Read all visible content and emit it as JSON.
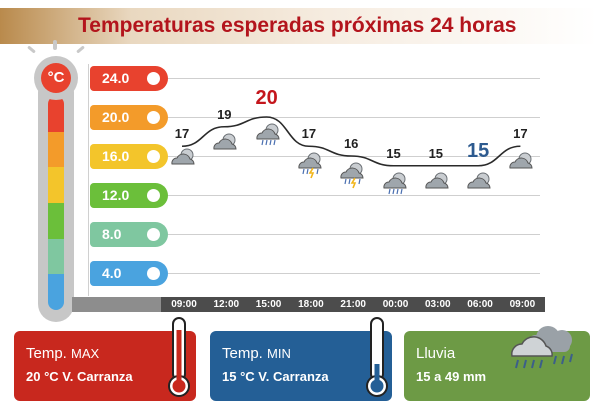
{
  "title": "Temperaturas esperadas próximas 24 horas",
  "unit_symbol": "°C",
  "scale": [
    {
      "label": "24.0",
      "color": "#e8422e"
    },
    {
      "label": "20.0",
      "color": "#f39b2a"
    },
    {
      "label": "16.0",
      "color": "#f3c52b"
    },
    {
      "label": "12.0",
      "color": "#6bbf3a"
    },
    {
      "label": "8.0",
      "color": "#7fc7a0"
    },
    {
      "label": "4.0",
      "color": "#4aa3df"
    }
  ],
  "times": [
    "09:00",
    "12:00",
    "15:00",
    "18:00",
    "21:00",
    "00:00",
    "03:00",
    "06:00",
    "09:00"
  ],
  "chart_data": {
    "type": "line",
    "x": [
      "09:00",
      "12:00",
      "15:00",
      "18:00",
      "21:00",
      "00:00",
      "03:00",
      "06:00",
      "09:00"
    ],
    "series": [
      {
        "values": [
          17,
          19,
          20,
          17,
          16,
          15,
          15,
          15,
          17
        ]
      }
    ],
    "value_labels": [
      "17",
      "19",
      "20",
      "17",
      "16",
      "15",
      "15",
      "15",
      "17"
    ],
    "ylim": [
      2,
      26
    ],
    "max_index": 2,
    "min_index": 7
  },
  "weather_icons": [
    "cloudy-icon",
    "cloudy-icon",
    "rain-cloud-icon",
    "storm-cloud-icon",
    "storm-cloud-icon",
    "rain-cloud-icon",
    "cloudy-icon",
    "cloudy-icon",
    "cloudy-icon"
  ],
  "cards": {
    "max": {
      "title": "Temp.",
      "sub": "MAX",
      "value": "20 °C  V. Carranza",
      "color": "#c8281e"
    },
    "min": {
      "title": "Temp.",
      "sub": "MIN",
      "value": "15 °C  V. Carranza",
      "color": "#245f96"
    },
    "rain": {
      "title": "Lluvia",
      "value": "15 a 49 mm",
      "color": "#6d9a45"
    }
  }
}
